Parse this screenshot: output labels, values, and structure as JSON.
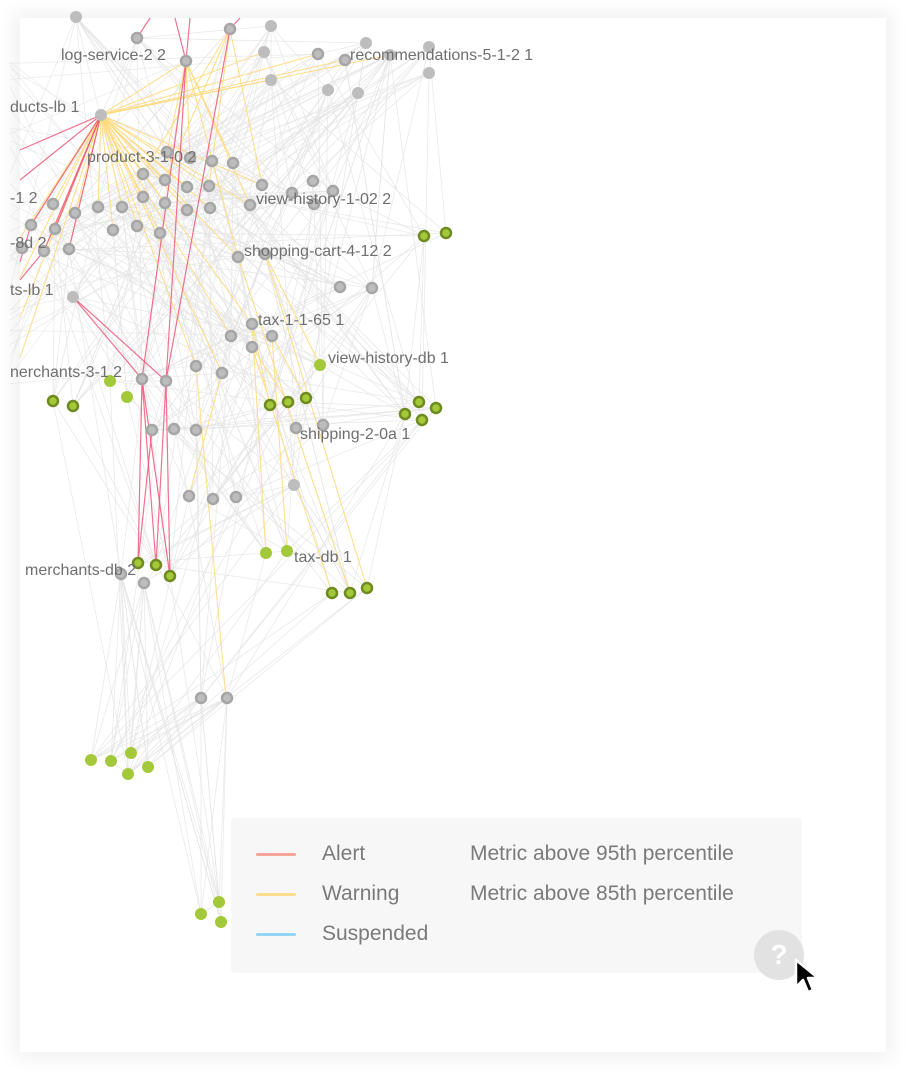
{
  "colors": {
    "alert": "#f0587a",
    "warning": "#ffd97a",
    "suspended": "#8fd3f4",
    "edge": "#e4e4e4",
    "node_gray": "#bdbdbd",
    "node_gray_ring": "#a6a6a6",
    "node_green": "#a3c93a",
    "node_green_ring": "#6f8a1f"
  },
  "graph": {
    "labels": [
      "log-service-2 2",
      "recommendations-5-1-2 1",
      "ducts-lb 1",
      "product-3-1-0 2",
      "-1 2",
      "view-history-1-02 2",
      "-8d 2",
      "shopping-cart-4-12 2",
      "ts-lb 1",
      "tax-1-1-65 1",
      "view-history-db 1",
      "nerchants-3-1 2",
      "shipping-2-0a 1",
      "merchants-db 2",
      "tax-db 1"
    ]
  },
  "legend": {
    "items": [
      {
        "label": "Alert",
        "description": "Metric above 95th percentile",
        "color": "#f5a49a"
      },
      {
        "label": "Warning",
        "description": "Metric above 85th percentile",
        "color": "#ffdd8e"
      },
      {
        "label": "Suspended",
        "description": "",
        "color": "#94d4f2"
      }
    ]
  },
  "help": {
    "icon": "question-icon",
    "glyph": "?"
  },
  "cursor": {
    "icon": "mouse-pointer-icon"
  }
}
